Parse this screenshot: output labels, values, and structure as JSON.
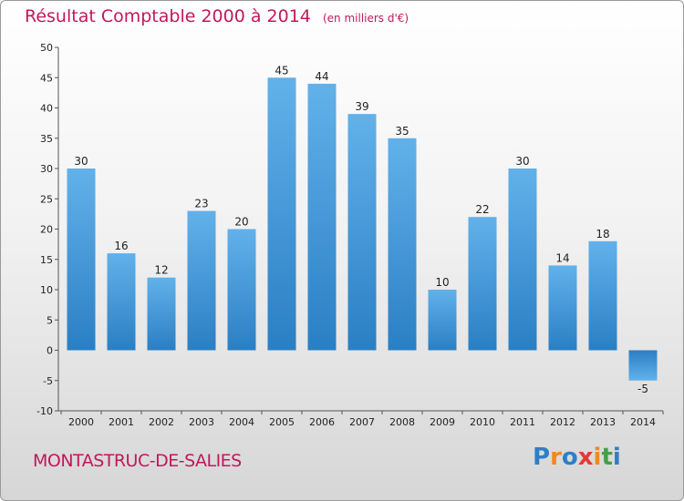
{
  "chart_data": {
    "type": "bar",
    "title": "Résultat Comptable 2000 à 2014",
    "subtitle": "(en milliers d'€)",
    "categories": [
      "2000",
      "2001",
      "2002",
      "2003",
      "2004",
      "2005",
      "2006",
      "2007",
      "2008",
      "2009",
      "2010",
      "2011",
      "2012",
      "2013",
      "2014"
    ],
    "values": [
      30,
      16,
      12,
      23,
      20,
      45,
      44,
      39,
      35,
      10,
      22,
      30,
      14,
      18,
      -5
    ],
    "ylim": [
      -10,
      50
    ],
    "yticks": [
      -10,
      -5,
      0,
      5,
      10,
      15,
      20,
      25,
      30,
      35,
      40,
      45,
      50
    ],
    "xlabel": "",
    "ylabel": "",
    "grid": false
  },
  "footer": {
    "location": "MONTASTRUC-DE-SALIES"
  },
  "logo": {
    "letters": [
      "P",
      "r",
      "o",
      "x",
      "i",
      "t",
      "i"
    ],
    "colors": [
      "#2e7fc9",
      "#f08a1c",
      "#2e7fc9",
      "#e53935",
      "#f08a1c",
      "#43a047",
      "#2e7fc9"
    ]
  },
  "colors": {
    "bar_top": "#62b1ea",
    "bar_bottom": "#2a7fc4",
    "accent": "#c2185b"
  }
}
